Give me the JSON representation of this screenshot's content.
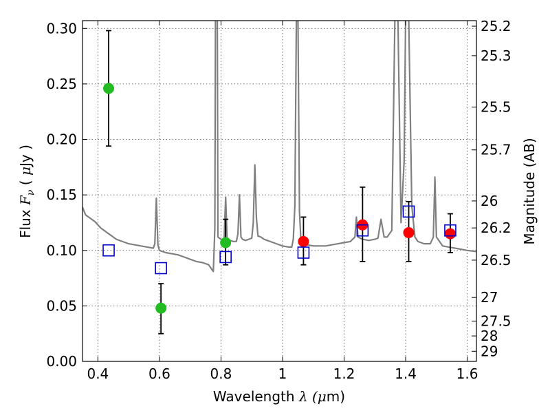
{
  "chart_data": {
    "type": "scatter",
    "xlabel": "Wavelength",
    "xlabel_symbol": "λ (",
    "xlabel_unit_mu": "μ",
    "xlabel_unit_rest": "m)",
    "ylabel": "Flux",
    "ylabel_symbol": "F",
    "ylabel_sub": "ν",
    "ylabel_unit_open": "( ",
    "ylabel_unit_mu": "μ",
    "ylabel_unit_rest": "Jy )",
    "y2label": "Magnitude (AB)",
    "xlim": [
      0.35,
      1.63
    ],
    "ylim": [
      0.0,
      0.307
    ],
    "grid": true,
    "x_ticks": [
      {
        "value": 0.4,
        "label": "0.4"
      },
      {
        "value": 0.6,
        "label": "0.6"
      },
      {
        "value": 0.8,
        "label": "0.8"
      },
      {
        "value": 1.0,
        "label": "1"
      },
      {
        "value": 1.2,
        "label": "1.2"
      },
      {
        "value": 1.4,
        "label": "1.4"
      },
      {
        "value": 1.6,
        "label": "1.6"
      }
    ],
    "y_ticks": [
      {
        "value": 0.0,
        "label": "0.00"
      },
      {
        "value": 0.05,
        "label": "0.05"
      },
      {
        "value": 0.1,
        "label": "0.10"
      },
      {
        "value": 0.15,
        "label": "0.15"
      },
      {
        "value": 0.2,
        "label": "0.20"
      },
      {
        "value": 0.25,
        "label": "0.25"
      },
      {
        "value": 0.3,
        "label": "0.30"
      }
    ],
    "y2_ticks": [
      {
        "value": 25.2,
        "label": "25.2"
      },
      {
        "value": 25.3,
        "label": "25.3"
      },
      {
        "value": 25.5,
        "label": "25.5"
      },
      {
        "value": 25.7,
        "label": "25.7"
      },
      {
        "value": 26.0,
        "label": "26"
      },
      {
        "value": 26.2,
        "label": "26.2"
      },
      {
        "value": 26.5,
        "label": "26.5"
      },
      {
        "value": 27.0,
        "label": "27"
      },
      {
        "value": 27.5,
        "label": "27.5"
      },
      {
        "value": 28.0,
        "label": "28"
      },
      {
        "value": 29.0,
        "label": "29"
      }
    ],
    "colors": {
      "spectrum": "#808080",
      "green": "#22bb22",
      "red": "#ff0000",
      "blue": "#0000cc",
      "errorbar": "#000000"
    },
    "series": [
      {
        "kind": "line",
        "points": [
          [
            0.35,
            0.139
          ],
          [
            0.36,
            0.132
          ],
          [
            0.37,
            0.13
          ],
          [
            0.38,
            0.128
          ],
          [
            0.39,
            0.126
          ],
          [
            0.4,
            0.123
          ],
          [
            0.41,
            0.12
          ],
          [
            0.42,
            0.118
          ],
          [
            0.43,
            0.116
          ],
          [
            0.44,
            0.114
          ],
          [
            0.45,
            0.112
          ],
          [
            0.46,
            0.11
          ],
          [
            0.47,
            0.109
          ],
          [
            0.48,
            0.108
          ],
          [
            0.49,
            0.107
          ],
          [
            0.5,
            0.106
          ],
          [
            0.52,
            0.105
          ],
          [
            0.54,
            0.104
          ],
          [
            0.56,
            0.103
          ],
          [
            0.58,
            0.102
          ],
          [
            0.585,
            0.106
          ],
          [
            0.59,
            0.147
          ],
          [
            0.595,
            0.105
          ],
          [
            0.6,
            0.1
          ],
          [
            0.62,
            0.098
          ],
          [
            0.64,
            0.097
          ],
          [
            0.66,
            0.096
          ],
          [
            0.68,
            0.094
          ],
          [
            0.7,
            0.092
          ],
          [
            0.72,
            0.09
          ],
          [
            0.74,
            0.089
          ],
          [
            0.76,
            0.087
          ],
          [
            0.77,
            0.083
          ],
          [
            0.775,
            0.081
          ],
          [
            0.78,
            0.12
          ],
          [
            0.782,
            0.31
          ],
          [
            0.788,
            0.31
          ],
          [
            0.79,
            0.112
          ],
          [
            0.8,
            0.11
          ],
          [
            0.81,
            0.108
          ],
          [
            0.815,
            0.148
          ],
          [
            0.82,
            0.11
          ],
          [
            0.83,
            0.109
          ],
          [
            0.84,
            0.108
          ],
          [
            0.85,
            0.108
          ],
          [
            0.855,
            0.115
          ],
          [
            0.86,
            0.15
          ],
          [
            0.865,
            0.112
          ],
          [
            0.87,
            0.11
          ],
          [
            0.88,
            0.109
          ],
          [
            0.89,
            0.11
          ],
          [
            0.9,
            0.111
          ],
          [
            0.905,
            0.125
          ],
          [
            0.91,
            0.177
          ],
          [
            0.915,
            0.13
          ],
          [
            0.92,
            0.113
          ],
          [
            0.93,
            0.112
          ],
          [
            0.94,
            0.11
          ],
          [
            0.95,
            0.109
          ],
          [
            0.96,
            0.108
          ],
          [
            0.98,
            0.106
          ],
          [
            1.0,
            0.104
          ],
          [
            1.02,
            0.103
          ],
          [
            1.03,
            0.103
          ],
          [
            1.035,
            0.11
          ],
          [
            1.04,
            0.14
          ],
          [
            1.045,
            0.31
          ],
          [
            1.05,
            0.31
          ],
          [
            1.055,
            0.135
          ],
          [
            1.06,
            0.108
          ],
          [
            1.07,
            0.106
          ],
          [
            1.08,
            0.105
          ],
          [
            1.1,
            0.104
          ],
          [
            1.12,
            0.104
          ],
          [
            1.14,
            0.104
          ],
          [
            1.16,
            0.105
          ],
          [
            1.18,
            0.106
          ],
          [
            1.2,
            0.107
          ],
          [
            1.22,
            0.108
          ],
          [
            1.235,
            0.112
          ],
          [
            1.24,
            0.13
          ],
          [
            1.245,
            0.112
          ],
          [
            1.26,
            0.11
          ],
          [
            1.28,
            0.109
          ],
          [
            1.3,
            0.11
          ],
          [
            1.31,
            0.111
          ],
          [
            1.32,
            0.128
          ],
          [
            1.33,
            0.112
          ],
          [
            1.34,
            0.112
          ],
          [
            1.355,
            0.118
          ],
          [
            1.365,
            0.31
          ],
          [
            1.375,
            0.31
          ],
          [
            1.385,
            0.125
          ],
          [
            1.395,
            0.18
          ],
          [
            1.4,
            0.31
          ],
          [
            1.41,
            0.31
          ],
          [
            1.42,
            0.14
          ],
          [
            1.43,
            0.112
          ],
          [
            1.44,
            0.108
          ],
          [
            1.46,
            0.106
          ],
          [
            1.48,
            0.106
          ],
          [
            1.49,
            0.112
          ],
          [
            1.495,
            0.166
          ],
          [
            1.5,
            0.112
          ],
          [
            1.52,
            0.104
          ],
          [
            1.54,
            0.103
          ],
          [
            1.56,
            0.102
          ],
          [
            1.58,
            0.101
          ],
          [
            1.6,
            0.1
          ],
          [
            1.63,
            0.099
          ]
        ]
      },
      {
        "kind": "points-with-errors",
        "marker": "circle",
        "color": "green",
        "points": [
          {
            "x": 0.435,
            "y": 0.246,
            "ylo": 0.194,
            "yhi": 0.298
          },
          {
            "x": 0.605,
            "y": 0.048,
            "ylo": 0.025,
            "yhi": 0.07
          },
          {
            "x": 0.815,
            "y": 0.107,
            "ylo": 0.087,
            "yhi": 0.128
          }
        ]
      },
      {
        "kind": "points-with-errors",
        "marker": "circle",
        "color": "red",
        "points": [
          {
            "x": 1.068,
            "y": 0.108,
            "ylo": 0.087,
            "yhi": 0.13
          },
          {
            "x": 1.26,
            "y": 0.123,
            "ylo": 0.09,
            "yhi": 0.157
          },
          {
            "x": 1.41,
            "y": 0.116,
            "ylo": 0.09,
            "yhi": 0.144
          },
          {
            "x": 1.545,
            "y": 0.115,
            "ylo": 0.098,
            "yhi": 0.133
          }
        ]
      },
      {
        "kind": "points",
        "marker": "square",
        "color": "blue",
        "points": [
          {
            "x": 0.435,
            "y": 0.1
          },
          {
            "x": 0.605,
            "y": 0.084
          },
          {
            "x": 0.815,
            "y": 0.094
          },
          {
            "x": 1.068,
            "y": 0.098
          },
          {
            "x": 1.26,
            "y": 0.118
          },
          {
            "x": 1.41,
            "y": 0.135
          },
          {
            "x": 1.545,
            "y": 0.118
          }
        ]
      }
    ]
  }
}
